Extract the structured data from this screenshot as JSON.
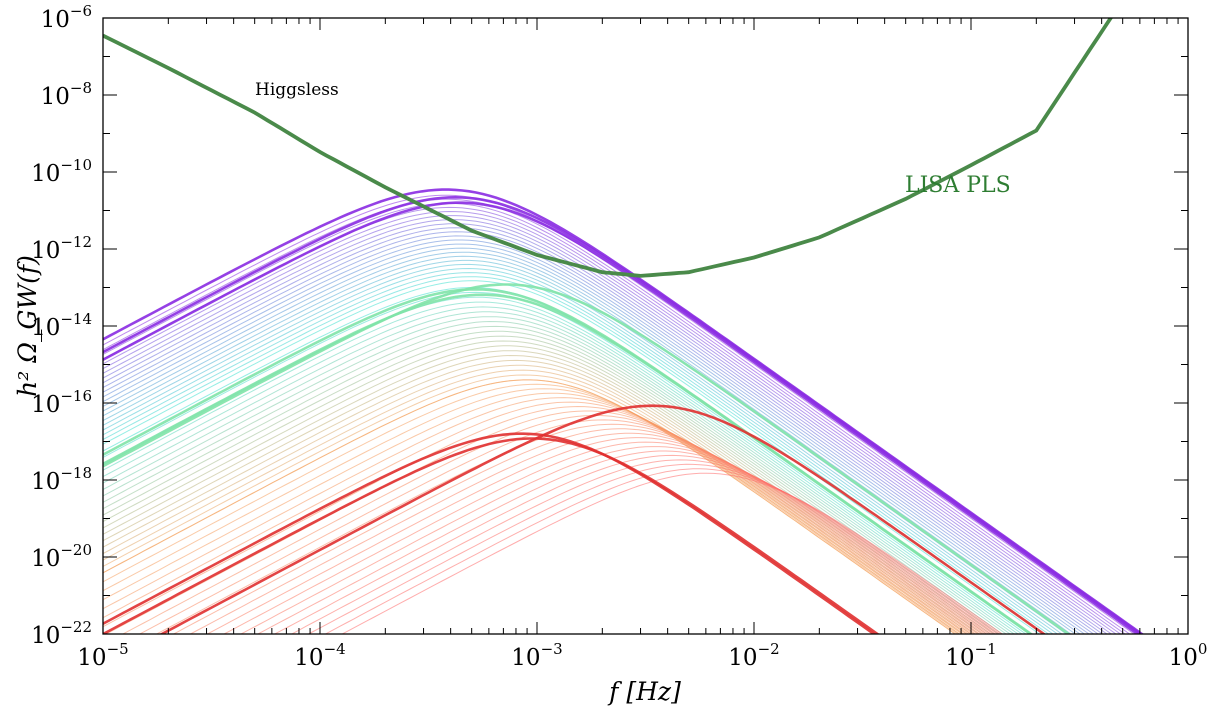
{
  "chart_data": {
    "type": "line",
    "title": "",
    "xlabel": "f [Hz]",
    "ylabel": "h² Ω_GW(f)",
    "xscale": "log",
    "yscale": "log",
    "xlim": [
      1e-05,
      1
    ],
    "ylim": [
      1e-22,
      1e-06
    ],
    "grid": false,
    "x_ticks": [
      {
        "base": "10",
        "exp": "−5"
      },
      {
        "base": "10",
        "exp": "−4"
      },
      {
        "base": "10",
        "exp": "−3"
      },
      {
        "base": "10",
        "exp": "−2"
      },
      {
        "base": "10",
        "exp": "−1"
      },
      {
        "base": "10",
        "exp": "0"
      }
    ],
    "y_ticks": [
      {
        "base": "10",
        "exp": "−22"
      },
      {
        "base": "10",
        "exp": "−20"
      },
      {
        "base": "10",
        "exp": "−18"
      },
      {
        "base": "10",
        "exp": "−16"
      },
      {
        "base": "10",
        "exp": "−14"
      },
      {
        "base": "10",
        "exp": "−12"
      },
      {
        "base": "10",
        "exp": "−10"
      },
      {
        "base": "10",
        "exp": "−8"
      },
      {
        "base": "10",
        "exp": "−6"
      }
    ],
    "annotations": [
      {
        "text": "Higgsless",
        "color": "#000000"
      },
      {
        "text": "LISA PLS",
        "color": "#2e7d32"
      }
    ],
    "lisa_pls": {
      "color": "#4a8a4a",
      "x": [
        1e-05,
        2e-05,
        5e-05,
        0.0001,
        0.0002,
        0.0005,
        0.001,
        0.002,
        0.003,
        0.005,
        0.01,
        0.02,
        0.05,
        0.1,
        0.2,
        0.45
      ],
      "y": [
        3.5e-07,
        5e-08,
        3.5e-09,
        3.3e-10,
        4e-11,
        3e-12,
        7e-13,
        2.5e-13,
        2e-13,
        2.5e-13,
        6e-13,
        2e-12,
        2e-11,
        1.5e-10,
        1.2e-09,
        1.2e-06
      ]
    },
    "gw_families": [
      {
        "color_start": "#8a2be2",
        "color_end": "#40e0d0",
        "count": 22,
        "peak_f": [
          0.00038,
          0.0005
        ],
        "peak_amp": [
          2.5e-11,
          1.5e-13
        ]
      },
      {
        "color_start": "#40e0d0",
        "color_end": "#f4a460",
        "count": 20,
        "peak_f": [
          0.0005,
          0.0009
        ],
        "peak_amp": [
          1e-13,
          4e-16
        ]
      },
      {
        "color_start": "#f4a460",
        "color_end": "#ff6a6a",
        "count": 22,
        "peak_f": [
          0.0009,
          0.006
        ],
        "peak_amp": [
          4e-16,
          1.5e-18
        ]
      }
    ],
    "series": [
      {
        "color": "#8a2be2",
        "peak_f": 0.00038,
        "peak_amp": 3.5e-11
      },
      {
        "color": "#8a2be2",
        "peak_f": 0.00042,
        "peak_amp": 2.2e-11
      },
      {
        "color": "#8a2be2",
        "peak_f": 0.00044,
        "peak_amp": 1.6e-11
      },
      {
        "color": "#7fe3a8",
        "peak_f": 0.00052,
        "peak_amp": 9e-14
      },
      {
        "color": "#7fe3a8",
        "peak_f": 0.00072,
        "peak_amp": 1.2e-13
      },
      {
        "color": "#7fe3a8",
        "peak_f": 0.00056,
        "peak_amp": 6.5e-14
      },
      {
        "color": "#e03030",
        "peak_f": 0.0034,
        "peak_amp": 8.5e-17
      },
      {
        "color": "#e03030",
        "peak_f": 0.00085,
        "peak_amp": 1.6e-17
      },
      {
        "color": "#e03030",
        "peak_f": 0.00095,
        "peak_amp": 1.2e-17
      }
    ]
  }
}
